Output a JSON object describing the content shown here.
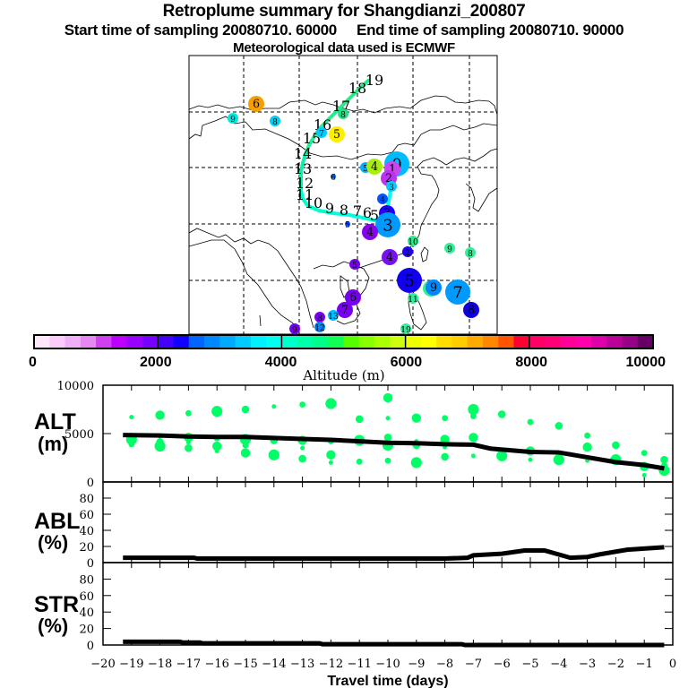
{
  "header": {
    "title": "Retroplume summary for Shangdianzi_200807",
    "subtitle": "Start time of sampling 20080710. 60000     End time of sampling 20080710. 90000",
    "met_note": "Meteorological data used is ECMWF"
  },
  "map": {
    "trajectory_labels": [
      "1",
      "2",
      "3",
      "4",
      "5",
      "6",
      "7",
      "8",
      "9",
      "10",
      "11",
      "12",
      "13",
      "14",
      "15",
      "16",
      "17",
      "18",
      "19"
    ],
    "trajectory_colors": [
      "#00ffcc",
      "#00ffee",
      "#33ddaa",
      "#22ee88"
    ],
    "clusters": [
      {
        "label": "6",
        "color": "#f5a000",
        "size": "medium"
      },
      {
        "label": "9",
        "color": "#00e8e0",
        "size": "small"
      },
      {
        "label": "8",
        "color": "#00d0f0",
        "size": "small"
      },
      {
        "label": "8",
        "color": "#22dd88",
        "size": "small"
      },
      {
        "label": "7",
        "color": "#00ccff",
        "size": "small"
      },
      {
        "label": "5",
        "color": "#ffee00",
        "size": "medium"
      },
      {
        "label": "6",
        "color": "#0066ff",
        "size": "tiny"
      },
      {
        "label": "5",
        "color": "#00b0ff",
        "size": "small"
      },
      {
        "label": "4",
        "color": "#aaee11",
        "size": "medium"
      },
      {
        "label": "0",
        "color": "#00bbff",
        "size": "large"
      },
      {
        "label": "1",
        "color": "#cc44ee",
        "size": "medium"
      },
      {
        "label": "2",
        "color": "#bb33ee",
        "size": "medium"
      },
      {
        "label": "3",
        "color": "#00ccff",
        "size": "small"
      },
      {
        "label": "4",
        "color": "#0055ff",
        "size": "small"
      },
      {
        "label": "3",
        "color": "#2200ff",
        "size": "medium"
      },
      {
        "label": "3",
        "color": "#0099ff",
        "size": "large"
      },
      {
        "label": "4",
        "color": "#8800ee",
        "size": "medium"
      },
      {
        "label": "5",
        "color": "#0044ff",
        "size": "tiny"
      },
      {
        "label": "10",
        "color": "#22ee88",
        "size": "small"
      },
      {
        "label": "4",
        "color": "#7711ee",
        "size": "medium"
      },
      {
        "label": "2",
        "color": "#2200ff",
        "size": "small"
      },
      {
        "label": "9",
        "color": "#33ee99",
        "size": "small"
      },
      {
        "label": "8",
        "color": "#33ee99",
        "size": "small"
      },
      {
        "label": "5",
        "color": "#7700ee",
        "size": "small"
      },
      {
        "label": "5",
        "color": "#1100ee",
        "size": "large"
      },
      {
        "label": "6",
        "color": "#33ee99",
        "size": "medium"
      },
      {
        "label": "7",
        "color": "#0099ff",
        "size": "large"
      },
      {
        "label": "9",
        "color": "#0088ff",
        "size": "medium"
      },
      {
        "label": "11",
        "color": "#33ee99",
        "size": "small"
      },
      {
        "label": "6",
        "color": "#7700ee",
        "size": "medium"
      },
      {
        "label": "7",
        "color": "#7700ee",
        "size": "medium"
      },
      {
        "label": "8",
        "color": "#1100dd",
        "size": "medium"
      },
      {
        "label": "8",
        "color": "#7700ee",
        "size": "small"
      },
      {
        "label": "13",
        "color": "#00bbff",
        "size": "small"
      },
      {
        "label": "12",
        "color": "#0088ff",
        "size": "small"
      },
      {
        "label": "9",
        "color": "#7700ee",
        "size": "small"
      },
      {
        "label": "19",
        "color": "#33ee99",
        "size": "small"
      }
    ]
  },
  "colorbar": {
    "tick_labels": [
      "0",
      "2000",
      "4000",
      "6000",
      "8000",
      "10000"
    ],
    "label": "Altitude (m)",
    "colors": [
      "#ffe6fb",
      "#fbccfb",
      "#f0b0f8",
      "#e688f2",
      "#d040f0",
      "#bb00ff",
      "#9900ff",
      "#7700ff",
      "#4400ff",
      "#1100ff",
      "#0066ff",
      "#0088ff",
      "#00aaff",
      "#00ccff",
      "#00f0ff",
      "#00ffee",
      "#00ffcc",
      "#00ffaa",
      "#00ff88",
      "#11ff55",
      "#55ff00",
      "#88ff00",
      "#aaff00",
      "#ccff11",
      "#eeff00",
      "#ffff00",
      "#ffdd00",
      "#ffcc00",
      "#ffaa00",
      "#ff8800",
      "#ff5500",
      "#ff0033",
      "#ff0066",
      "#ff0077",
      "#ff0099",
      "#ff00aa",
      "#dd00aa",
      "#bb0099",
      "#990088",
      "#660066"
    ]
  },
  "chart_data": [
    {
      "type": "scatter",
      "title": "ALT (m)",
      "ylabel": "ALT (m)",
      "xlabel": "Travel time (days)",
      "xlim": [
        -20,
        0
      ],
      "ylim": [
        0,
        10000
      ],
      "y_ticks": [
        "0",
        "5000",
        "10000"
      ],
      "line": {
        "name": "mean altitude",
        "x": [
          -19.3,
          -18,
          -17,
          -16,
          -15,
          -14,
          -13,
          -12,
          -11,
          -10,
          -9,
          -8,
          -7,
          -6.4,
          -5,
          -4,
          -3.4,
          -2,
          -1,
          -0.3
        ],
        "y": [
          4850,
          4800,
          4700,
          4650,
          4650,
          4550,
          4450,
          4350,
          4200,
          4050,
          4000,
          3900,
          3850,
          3450,
          3100,
          3050,
          2750,
          2050,
          1750,
          1400
        ]
      },
      "points": {
        "name": "cluster altitudes",
        "color": "#00ff66",
        "x": [
          -19,
          -19,
          -19,
          -19,
          -18,
          -18,
          -18,
          -18,
          -17,
          -17,
          -17,
          -17,
          -16,
          -16,
          -16,
          -16,
          -15,
          -15,
          -15,
          -15,
          -14,
          -14,
          -14,
          -13,
          -13,
          -13,
          -13,
          -12,
          -12,
          -12,
          -12,
          -11,
          -11,
          -11,
          -10,
          -10,
          -10,
          -10,
          -10,
          -9,
          -9,
          -9,
          -9,
          -8,
          -8,
          -8,
          -8,
          -7,
          -7,
          -7,
          -7,
          -6,
          -6,
          -5,
          -5,
          -5,
          -4,
          -4,
          -3,
          -3,
          -3,
          -2,
          -2,
          -1,
          -1,
          -1,
          -0.3,
          -0.3,
          -0.3
        ],
        "y": [
          6700,
          4700,
          4400,
          3900,
          6900,
          4700,
          4100,
          3700,
          7100,
          4600,
          4100,
          3500,
          7300,
          4500,
          3700,
          3200,
          7500,
          4400,
          3800,
          3000,
          7800,
          4300,
          2800,
          8000,
          4300,
          3500,
          2400,
          8100,
          4200,
          2800,
          2000,
          6500,
          4300,
          2100,
          8700,
          6600,
          4600,
          3800,
          2200,
          6600,
          4200,
          3800,
          2000,
          6600,
          4400,
          3600,
          2600,
          7500,
          6800,
          4600,
          2700,
          7000,
          2700,
          6200,
          3200,
          2300,
          5800,
          2300,
          4800,
          3600,
          2200,
          3800,
          2300,
          3000,
          1600,
          700,
          2300,
          1200,
          1700
        ]
      }
    },
    {
      "type": "line",
      "title": "ABL (%)",
      "ylabel": "ABL (%)",
      "xlabel": "Travel time (days)",
      "xlim": [
        -20,
        0
      ],
      "ylim": [
        0,
        100
      ],
      "y_ticks": [
        "0",
        "20",
        "40",
        "60",
        "80"
      ],
      "x": [
        -19.3,
        -16.8,
        -16.7,
        -12,
        -11,
        -10,
        -8,
        -7.2,
        -7,
        -6,
        -5.2,
        -4.5,
        -3.6,
        -3,
        -2.6,
        -1.6,
        -0.3
      ],
      "y": [
        6,
        6,
        5,
        5,
        5,
        5,
        5,
        6,
        9,
        11,
        15,
        15,
        6,
        7,
        10,
        16,
        19
      ]
    },
    {
      "type": "line",
      "title": "STR (%)",
      "ylabel": "STR (%)",
      "xlabel": "Travel time (days)",
      "xlim": [
        -20,
        0
      ],
      "ylim": [
        0,
        100
      ],
      "y_ticks": [
        "0",
        "20",
        "40",
        "60",
        "80"
      ],
      "x": [
        -19.3,
        -17.3,
        -17.2,
        -16.6,
        -16.5,
        -12.4,
        -12.3,
        -10,
        -7.4,
        -7.3,
        -0.3
      ],
      "y": [
        4,
        4,
        3,
        3,
        2,
        2,
        1,
        1,
        1,
        0,
        0
      ]
    }
  ],
  "x_axis": {
    "tick_labels": [
      "-20",
      "-19",
      "-18",
      "-17",
      "-16",
      "-15",
      "-14",
      "-13",
      "-12",
      "-11",
      "-10",
      "-9",
      "-8",
      "-7",
      "-6",
      "-5",
      "-4",
      "-3",
      "-2",
      "-1",
      "0"
    ],
    "label": "Travel time (days)"
  },
  "panels": {
    "alt_label_1": "ALT",
    "alt_label_2": "(m)",
    "abl_label_1": "ABL",
    "abl_label_2": "(%)",
    "str_label_1": "STR",
    "str_label_2": "(%)"
  }
}
